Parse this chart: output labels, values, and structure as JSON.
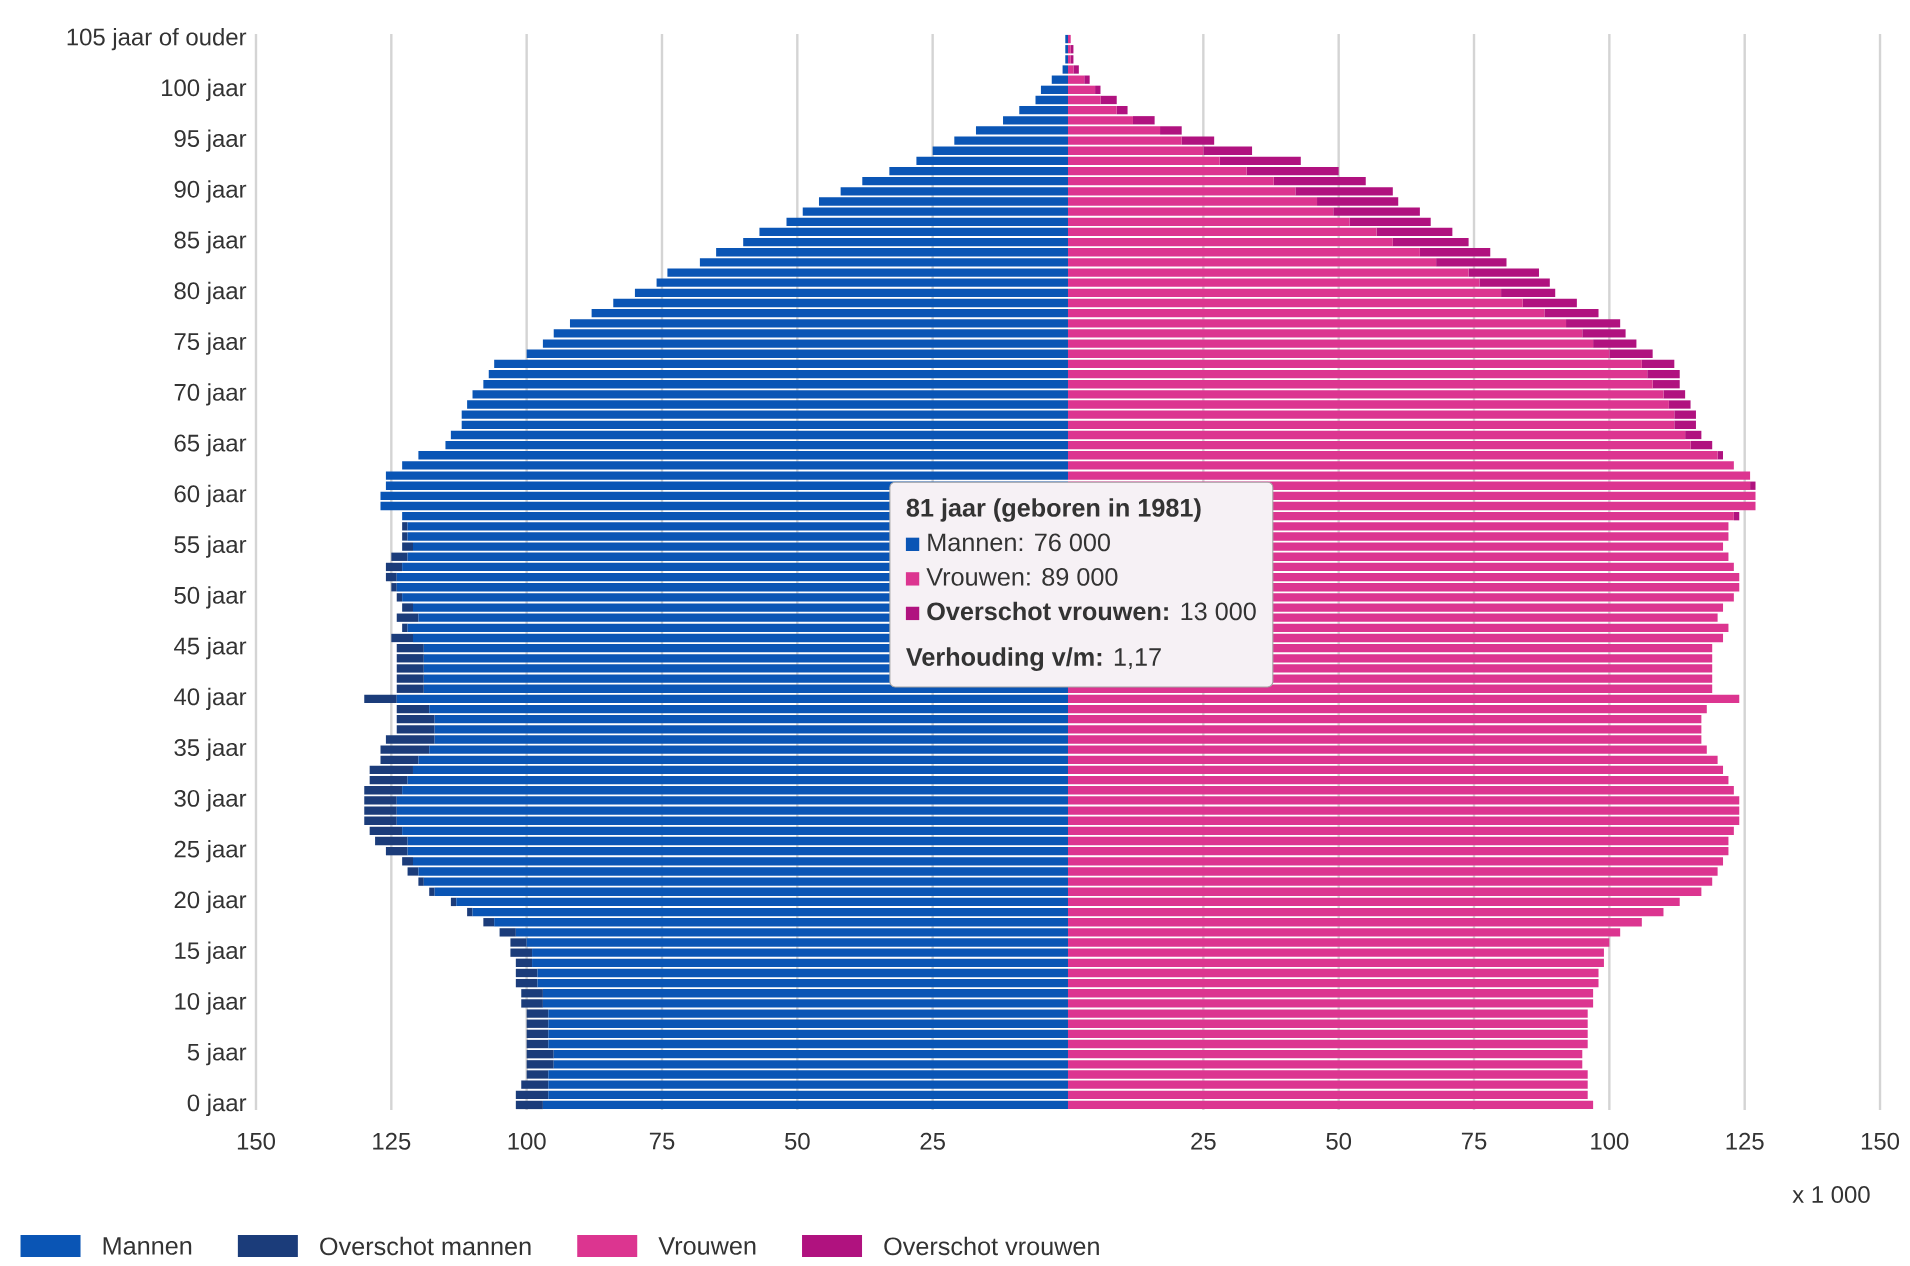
{
  "chart_data": [
    {
      "type": "bar",
      "orientation": "horizontal",
      "stacked": true,
      "grid": "x",
      "legend": "bottom",
      "xlim": [
        150,
        0
      ],
      "xticks": [
        150,
        125,
        100,
        75,
        50,
        25
      ],
      "annotations": [
        "81 jaar (geboren in 1981)",
        "Mannen: 76 000",
        "Vrouwen: 89 000",
        "**Overschot vrouwen:** 13 000",
        "**Verhouding v/m:** 1,17"
      ],
      "categories": [
        "105 jaar of ouder",
        null,
        null,
        null,
        null,
        "100 jaar",
        null,
        null,
        null,
        null,
        "95 jaar",
        null,
        null,
        null,
        null,
        "90 jaar",
        null,
        null,
        null,
        null,
        "85 jaar",
        null,
        null,
        null,
        null,
        "80 jaar",
        null,
        null,
        null,
        null,
        "75 jaar",
        null,
        null,
        null,
        null,
        "70 jaar",
        null,
        null,
        null,
        null,
        "65 jaar",
        null,
        null,
        null,
        null,
        "60 jaar",
        null,
        null,
        null,
        null,
        "55 jaar",
        null,
        null,
        null,
        null,
        "50 jaar",
        null,
        null,
        null,
        null,
        "45 jaar",
        null,
        null,
        null,
        null,
        "40 jaar",
        null,
        null,
        null,
        null,
        "35 jaar",
        null,
        null,
        null,
        null,
        "30 jaar",
        null,
        null,
        null,
        null,
        "25 jaar",
        null,
        null,
        null,
        null,
        "20 jaar",
        null,
        null,
        null,
        null,
        "15 jaar",
        null,
        null,
        null,
        null,
        "10 jaar",
        null,
        null,
        null,
        null,
        "5 jaar",
        null,
        null,
        null,
        null,
        "0 jaar"
      ],
      "series": [
        {
          "name": "Mannen",
          "color": "#0a55b5",
          "values": [
            0.5,
            0.5,
            0.5,
            1,
            3,
            5,
            6,
            9,
            12,
            17,
            21,
            25,
            28,
            33,
            38,
            42,
            46,
            49,
            52,
            57,
            60,
            65,
            68,
            74,
            76,
            80,
            84,
            88,
            92,
            95,
            97,
            100,
            106,
            107,
            108,
            110,
            111,
            112,
            112,
            114,
            115,
            120,
            123,
            126,
            126,
            127,
            127,
            123,
            122,
            122,
            121,
            122,
            123,
            124,
            124,
            123,
            121,
            120,
            122,
            121,
            119,
            119,
            119,
            119,
            119,
            124,
            118,
            117,
            117,
            117,
            118,
            120,
            121,
            122,
            123,
            124,
            124,
            124,
            123,
            122,
            122,
            121,
            120,
            119,
            117,
            113,
            110,
            106,
            102,
            100,
            99,
            99,
            98,
            98,
            97,
            97,
            96,
            96,
            96,
            96,
            95,
            95,
            96,
            96,
            96,
            97
          ]
        },
        {
          "name": "Overschot mannen",
          "color": "#1b3c7a",
          "values": [
            0,
            0,
            0,
            0,
            0,
            0,
            0,
            0,
            0,
            0,
            0,
            0,
            0,
            0,
            0,
            0,
            0,
            0,
            0,
            0,
            0,
            0,
            0,
            0,
            0,
            0,
            0,
            0,
            0,
            0,
            0,
            0,
            0,
            0,
            0,
            0,
            0,
            0,
            0,
            0,
            0,
            0,
            0,
            0,
            0,
            0,
            0,
            0,
            1,
            1,
            2,
            3,
            3,
            2,
            1,
            1,
            2,
            4,
            1,
            4,
            5,
            5,
            5,
            5,
            5,
            6,
            6,
            7,
            7,
            9,
            9,
            7,
            8,
            7,
            7,
            6,
            6,
            6,
            6,
            6,
            4,
            2,
            2,
            1,
            1,
            1,
            1,
            2,
            3,
            3,
            4,
            3,
            4,
            4,
            4,
            4,
            4,
            4,
            4,
            4,
            5,
            5,
            4,
            5,
            6,
            5
          ]
        }
      ]
    },
    {
      "type": "bar",
      "orientation": "horizontal",
      "stacked": true,
      "grid": "x",
      "legend": "bottom",
      "xlim": [
        0,
        150
      ],
      "xticks": [
        25,
        50,
        75,
        100,
        125,
        150
      ],
      "xlabel": "x 1 000",
      "categories": [
        null,
        null,
        null,
        null,
        null,
        null,
        null,
        null,
        null,
        null,
        null,
        null,
        null,
        null,
        null,
        null,
        null,
        null,
        null,
        null,
        null,
        null,
        null,
        null,
        null,
        null,
        null,
        null,
        null,
        null,
        null,
        null,
        null,
        null,
        null,
        null,
        null,
        null,
        null,
        null,
        null,
        null,
        null,
        null,
        null,
        null,
        null,
        null,
        null,
        null,
        null,
        null,
        null,
        null,
        null,
        null,
        null,
        null,
        null,
        null,
        null,
        null,
        null,
        null,
        null,
        null,
        null,
        null,
        null,
        null,
        null,
        null,
        null,
        null,
        null,
        null,
        null,
        null,
        null,
        null,
        null,
        null,
        null,
        null,
        null,
        null,
        null,
        null,
        null,
        null,
        null,
        null,
        null,
        null,
        null,
        null,
        null,
        null,
        null,
        null,
        null,
        null,
        null,
        null,
        null,
        null
      ],
      "series": [
        {
          "name": "Vrouwen",
          "color": "#dc3590",
          "values": [
            0.5,
            0.5,
            0.5,
            1,
            3,
            5,
            6,
            9,
            12,
            17,
            21,
            25,
            28,
            33,
            38,
            42,
            46,
            49,
            52,
            57,
            60,
            65,
            68,
            74,
            76,
            80,
            84,
            88,
            92,
            95,
            97,
            100,
            106,
            107,
            108,
            110,
            111,
            112,
            112,
            114,
            115,
            120,
            123,
            126,
            126,
            127,
            127,
            123,
            122,
            122,
            121,
            122,
            123,
            124,
            124,
            123,
            121,
            120,
            122,
            121,
            119,
            119,
            119,
            119,
            119,
            124,
            118,
            117,
            117,
            117,
            118,
            120,
            121,
            122,
            123,
            124,
            124,
            124,
            123,
            122,
            122,
            121,
            120,
            119,
            117,
            113,
            110,
            106,
            102,
            100,
            99,
            99,
            98,
            98,
            97,
            97,
            96,
            96,
            96,
            96,
            95,
            95,
            96,
            96,
            96,
            97
          ]
        },
        {
          "name": "Overschot vrouwen",
          "color": "#b0127f",
          "values": [
            0,
            0.5,
            0.5,
            1,
            1,
            1,
            3,
            2,
            4,
            4,
            6,
            9,
            15,
            17,
            17,
            18,
            15,
            16,
            15,
            14,
            14,
            13,
            13,
            13,
            13,
            10,
            10,
            10,
            10,
            8,
            8,
            8,
            6,
            6,
            5,
            4,
            4,
            4,
            4,
            3,
            4,
            1,
            0,
            0,
            1,
            0,
            0,
            1,
            0,
            0,
            0,
            0,
            0,
            0,
            0,
            0,
            0,
            0,
            0,
            0,
            0,
            0,
            0,
            0,
            0,
            0,
            0,
            0,
            0,
            0,
            0,
            0,
            0,
            0,
            0,
            0,
            0,
            0,
            0,
            0,
            0,
            0,
            0,
            0,
            0,
            0,
            0,
            0,
            0,
            0,
            0,
            0,
            0,
            0,
            0,
            0,
            0,
            0,
            0,
            0,
            0,
            0,
            0,
            0,
            0,
            0
          ]
        }
      ]
    }
  ]
}
